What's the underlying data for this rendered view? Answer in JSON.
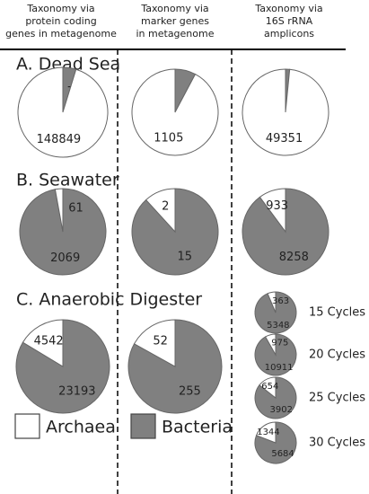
{
  "column_headers": [
    [
      "Taxonomy via",
      "protein coding",
      "genes in metagenome"
    ],
    [
      "Taxonomy via",
      "marker genes",
      "in metagenome"
    ],
    [
      "Taxonomy via",
      "16S rRNA",
      "amplicons"
    ]
  ],
  "row_labels": [
    "A. Dead Sea",
    "B. Seawater",
    "C. Anaerobic Digester"
  ],
  "legend": [
    {
      "name": "Archaea",
      "color": "#ffffff"
    },
    {
      "name": "Bacteria",
      "color": "#808080"
    }
  ],
  "chart_data": [
    {
      "type": "pie",
      "values": [
        148849,
        7422
      ],
      "colors": [
        "#ffffff",
        "#808080"
      ]
    },
    {
      "type": "pie",
      "values": [
        1105,
        93
      ],
      "colors": [
        "#ffffff",
        "#808080"
      ]
    },
    {
      "type": "pie",
      "values": [
        49351,
        778
      ],
      "colors": [
        "#ffffff",
        "#808080"
      ]
    },
    {
      "type": "pie",
      "values": [
        61,
        2069
      ],
      "colors": [
        "#ffffff",
        "#808080"
      ]
    },
    {
      "type": "pie",
      "values": [
        2,
        15
      ],
      "colors": [
        "#ffffff",
        "#808080"
      ]
    },
    {
      "type": "pie",
      "values": [
        933,
        8258
      ],
      "colors": [
        "#ffffff",
        "#808080"
      ]
    },
    {
      "type": "pie",
      "values": [
        4542,
        23193
      ],
      "colors": [
        "#ffffff",
        "#808080"
      ]
    },
    {
      "type": "pie",
      "values": [
        52,
        255
      ],
      "colors": [
        "#ffffff",
        "#808080"
      ]
    },
    {
      "type": "pie",
      "title": "15 Cycles",
      "values": [
        363,
        5348
      ],
      "colors": [
        "#ffffff",
        "#808080"
      ]
    },
    {
      "type": "pie",
      "title": "20 Cycles",
      "values": [
        975,
        10911
      ],
      "colors": [
        "#ffffff",
        "#808080"
      ]
    },
    {
      "type": "pie",
      "title": "25 Cycles",
      "values": [
        654,
        3902
      ],
      "colors": [
        "#ffffff",
        "#808080"
      ]
    },
    {
      "type": "pie",
      "title": "30 Cycles",
      "values": [
        1344,
        5684
      ],
      "colors": [
        "#ffffff",
        "#808080"
      ]
    }
  ]
}
